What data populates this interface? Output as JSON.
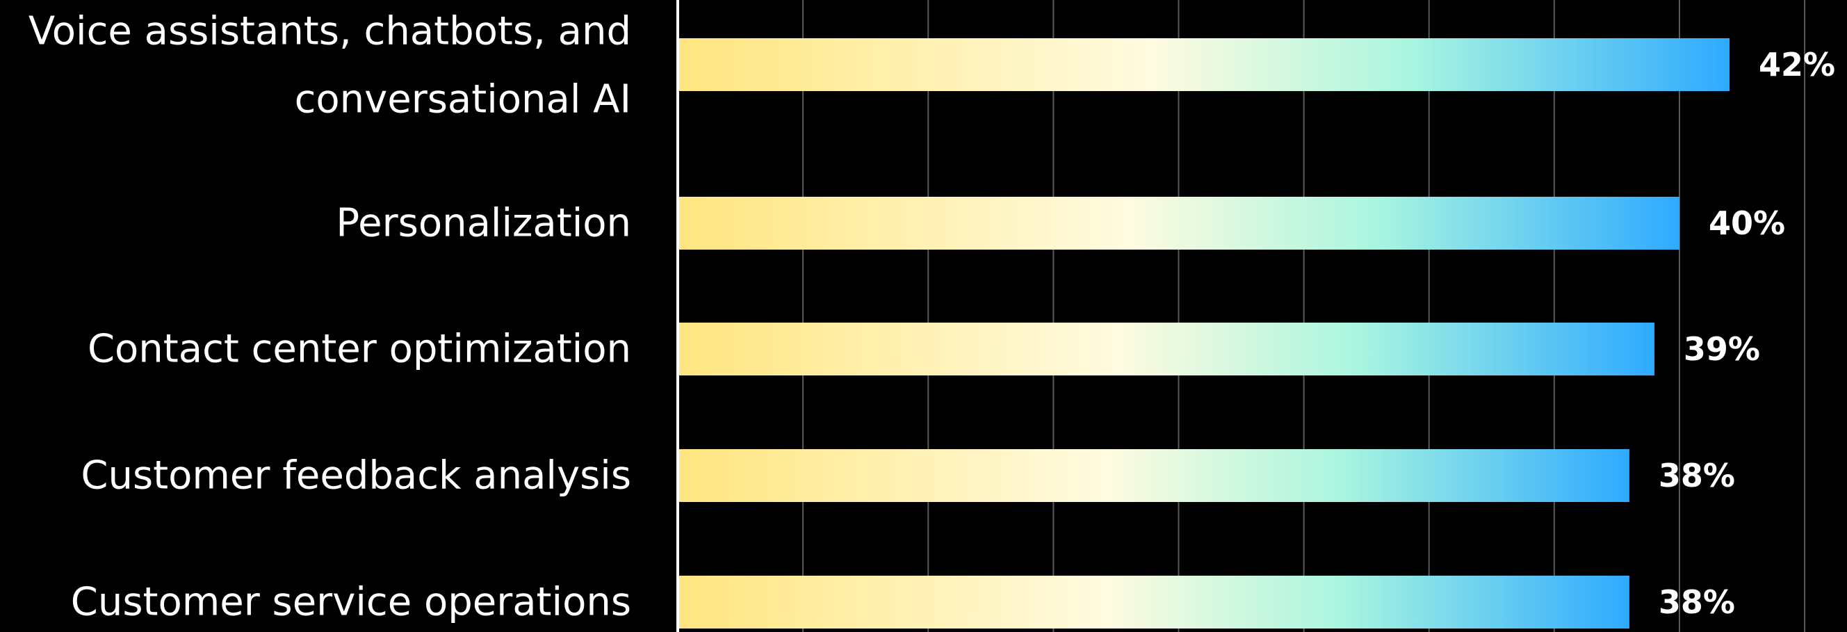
{
  "chart_data": {
    "type": "bar",
    "orientation": "horizontal",
    "categories": [
      [
        "Voice assistants, chatbots, and",
        "conversational AI"
      ],
      [
        "Personalization"
      ],
      [
        "Contact center optimization"
      ],
      [
        "Customer feedback analysis"
      ],
      [
        "Customer service operations"
      ]
    ],
    "values": [
      42,
      40,
      39,
      38,
      38
    ],
    "value_labels": [
      "42%",
      "40%",
      "39%",
      "38%",
      "38%"
    ],
    "xlim": [
      0,
      46
    ],
    "grid": true,
    "gridline_step": 5,
    "legend": "none"
  },
  "colors": {
    "background": "#000000",
    "bar_gradient": [
      "#ffe680",
      "#fffbe0",
      "#a8f5e0",
      "#2eaaff"
    ],
    "text": "#ffffff",
    "gridline": "#5a5a5a",
    "axis": "#ffffff"
  }
}
